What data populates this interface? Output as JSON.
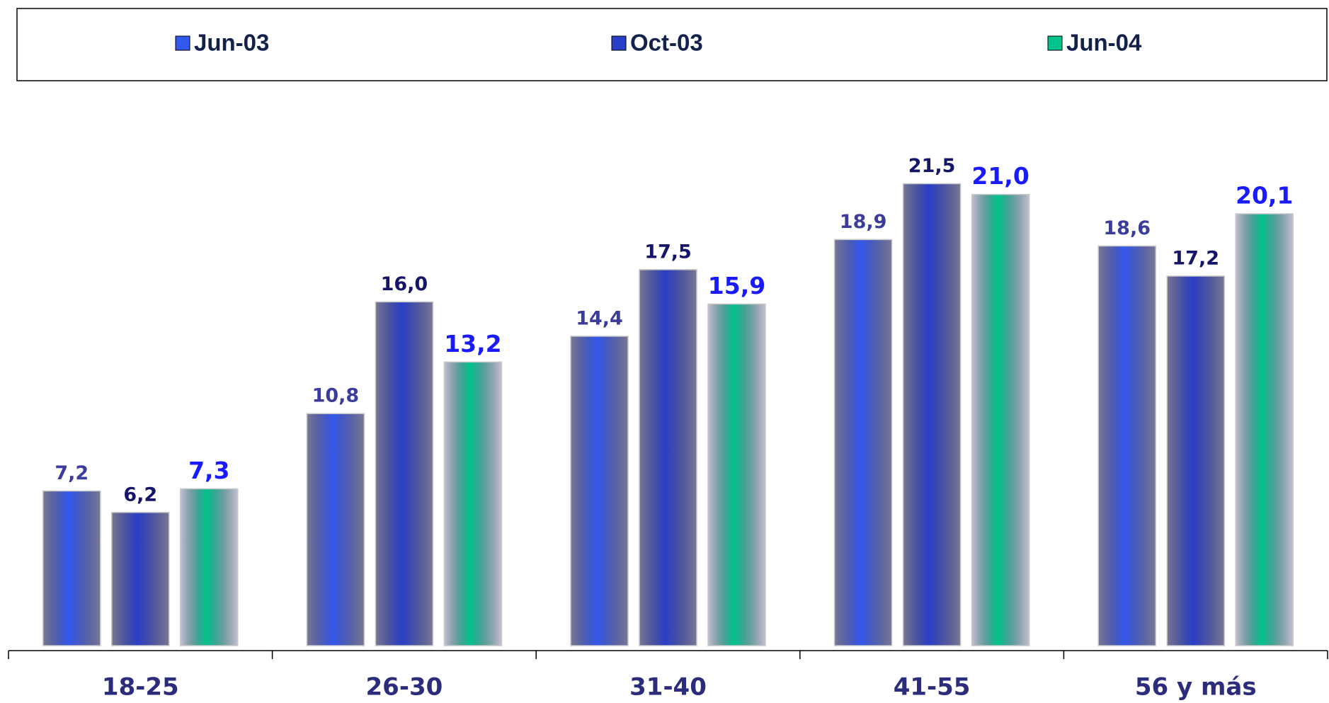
{
  "chart_data": {
    "type": "bar",
    "categories": [
      "18-25",
      "26-30",
      "31-40",
      "41-55",
      "56 y más"
    ],
    "series": [
      {
        "name": "Jun-03",
        "color": "#3358ee",
        "values": [
          7.2,
          10.8,
          14.4,
          18.9,
          18.6
        ],
        "value_labels": [
          "7,2",
          "10,8",
          "14,4",
          "18,9",
          "18,6"
        ]
      },
      {
        "name": "Oct-03",
        "color": "#2a3fc8",
        "values": [
          6.2,
          16.0,
          17.5,
          21.5,
          17.2
        ],
        "value_labels": [
          "6,2",
          "16,0",
          "17,5",
          "21,5",
          "17,2"
        ]
      },
      {
        "name": "Jun-04",
        "color": "#00c48c",
        "values": [
          7.3,
          13.2,
          15.9,
          21.0,
          20.1
        ],
        "value_labels": [
          "7,3",
          "13,2",
          "15,9",
          "21,0",
          "20,1"
        ]
      }
    ],
    "legend": "top"
  }
}
